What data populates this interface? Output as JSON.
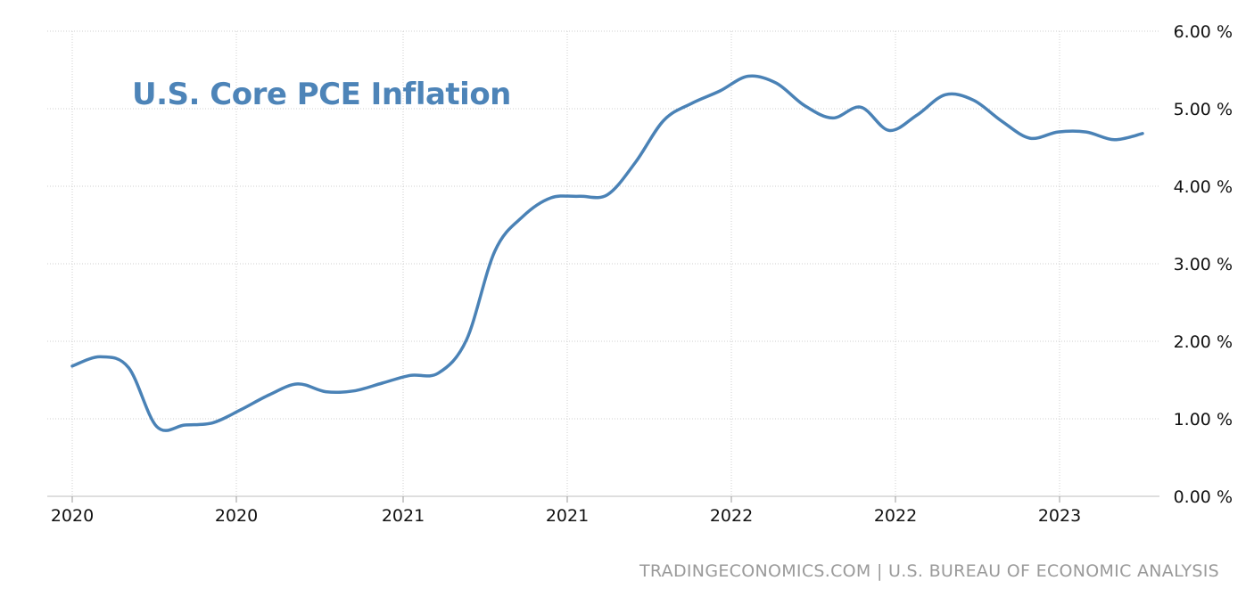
{
  "chart_data": {
    "type": "line",
    "title": "U.S. Core PCE Inflation",
    "source": "TRADINGECONOMICS.COM | U.S. BUREAU OF ECONOMIC ANALYSIS",
    "y_unit": "%",
    "ylim": [
      0,
      6
    ],
    "yticks": [
      "0.00 %",
      "1.00 %",
      "2.00 %",
      "3.00 %",
      "4.00 %",
      "5.00 %",
      "6.00 %"
    ],
    "xticks": [
      "2020",
      "2020",
      "2021",
      "2021",
      "2022",
      "2022",
      "2023"
    ],
    "grid": true,
    "line_color": "#4a82b6",
    "series": [
      {
        "values": [
          1.68,
          1.8,
          1.66,
          0.9,
          0.92,
          0.95,
          1.12,
          1.31,
          1.45,
          1.35,
          1.36,
          1.46,
          1.56,
          1.59,
          2.02,
          3.16,
          3.61,
          3.85,
          3.87,
          3.89,
          4.31,
          4.85,
          5.07,
          5.23,
          5.42,
          5.33,
          5.04,
          4.88,
          5.02,
          4.72,
          4.92,
          5.18,
          5.11,
          4.84,
          4.62,
          4.7,
          4.7,
          4.6,
          4.68
        ]
      }
    ]
  }
}
